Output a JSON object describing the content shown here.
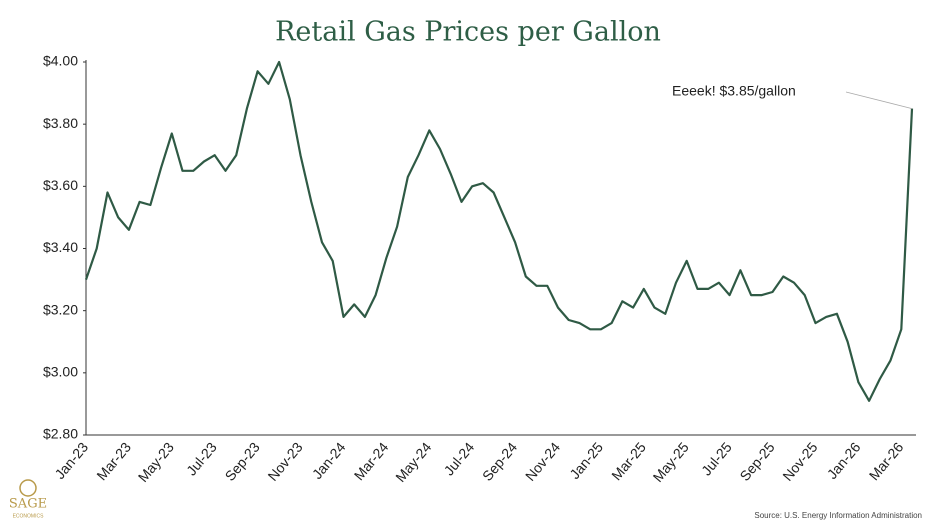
{
  "chart_data": {
    "type": "line",
    "title": "Retail Gas Prices per Gallon",
    "annotation": "Eeeek! $3.85/gallon",
    "source": "Source: U.S. Energy Information Administration",
    "logo": {
      "name": "SAGE",
      "tagline": "ECONOMICS"
    },
    "categories": [
      "Jan-23",
      null,
      null,
      null,
      "Mar-23",
      null,
      null,
      null,
      "May-23",
      null,
      null,
      null,
      "Jul-23",
      null,
      null,
      null,
      "Sep-23",
      null,
      null,
      null,
      "Nov-23",
      null,
      null,
      null,
      "Jan-24",
      null,
      null,
      null,
      "Mar-24",
      null,
      null,
      null,
      "May-24",
      null,
      null,
      null,
      "Jul-24",
      null,
      null,
      null,
      "Sep-24",
      null,
      null,
      null,
      "Nov-24",
      null,
      null,
      null,
      "Jan-25",
      null,
      null,
      null,
      "Mar-25",
      null,
      null,
      null,
      "May-25",
      null,
      null,
      null,
      "Jul-25",
      null,
      null,
      null,
      "Sep-25",
      null,
      null,
      null,
      "Nov-25",
      null,
      null,
      null,
      "Jan-26",
      null,
      null,
      null,
      "Mar-26",
      null
    ],
    "series": [
      {
        "name": "Retail gas price",
        "color": "#2f5a45",
        "values": [
          3.3,
          3.4,
          3.58,
          3.5,
          3.46,
          3.55,
          3.54,
          3.66,
          3.77,
          3.65,
          3.65,
          3.68,
          3.7,
          3.65,
          3.7,
          3.85,
          3.97,
          3.93,
          4.0,
          3.88,
          3.7,
          3.55,
          3.42,
          3.36,
          3.18,
          3.22,
          3.18,
          3.25,
          3.37,
          3.47,
          3.63,
          3.7,
          3.78,
          3.72,
          3.64,
          3.55,
          3.6,
          3.61,
          3.58,
          3.5,
          3.42,
          3.31,
          3.28,
          3.28,
          3.21,
          3.17,
          3.16,
          3.14,
          3.14,
          3.16,
          3.23,
          3.21,
          3.27,
          3.21,
          3.19,
          3.29,
          3.36,
          3.27,
          3.27,
          3.29,
          3.25,
          3.33,
          3.25,
          3.25,
          3.26,
          3.31,
          3.29,
          3.25,
          3.16,
          3.18,
          3.19,
          3.1,
          2.97,
          2.91,
          2.98,
          3.04,
          3.14,
          3.85
        ]
      }
    ],
    "ylim": [
      2.8,
      4.0
    ],
    "yticks": [
      {
        "value": 2.8,
        "label": "$2.80"
      },
      {
        "value": 3.0,
        "label": "$3.00"
      },
      {
        "value": 3.2,
        "label": "$3.20"
      },
      {
        "value": 3.4,
        "label": "$3.40"
      },
      {
        "value": 3.6,
        "label": "$3.60"
      },
      {
        "value": 3.8,
        "label": "$3.80"
      },
      {
        "value": 4.0,
        "label": "$4.00"
      }
    ],
    "grid": false
  }
}
